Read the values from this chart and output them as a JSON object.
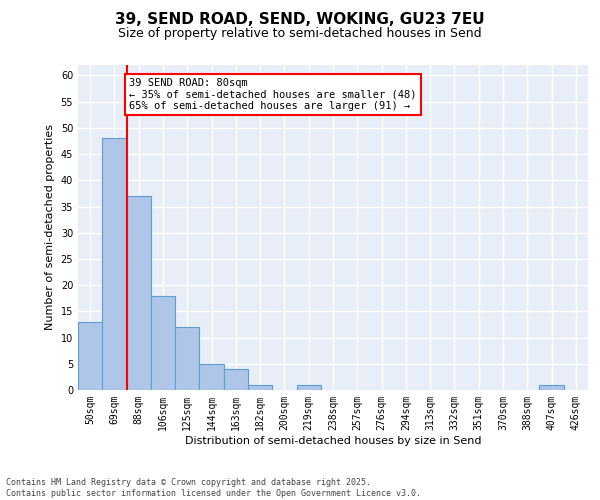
{
  "title": "39, SEND ROAD, SEND, WOKING, GU23 7EU",
  "subtitle": "Size of property relative to semi-detached houses in Send",
  "xlabel": "Distribution of semi-detached houses by size in Send",
  "ylabel": "Number of semi-detached properties",
  "categories": [
    "50sqm",
    "69sqm",
    "88sqm",
    "106sqm",
    "125sqm",
    "144sqm",
    "163sqm",
    "182sqm",
    "200sqm",
    "219sqm",
    "238sqm",
    "257sqm",
    "276sqm",
    "294sqm",
    "313sqm",
    "332sqm",
    "351sqm",
    "370sqm",
    "388sqm",
    "407sqm",
    "426sqm"
  ],
  "values": [
    13,
    48,
    37,
    18,
    12,
    5,
    4,
    1,
    0,
    1,
    0,
    0,
    0,
    0,
    0,
    0,
    0,
    0,
    0,
    1,
    0
  ],
  "bar_color": "#aec6e8",
  "bar_edge_color": "#5a9fd4",
  "vline_x": 1.5,
  "vline_color": "red",
  "annotation_text": "39 SEND ROAD: 80sqm\n← 35% of semi-detached houses are smaller (48)\n65% of semi-detached houses are larger (91) →",
  "annotation_box_color": "white",
  "annotation_box_edge_color": "red",
  "ylim": [
    0,
    62
  ],
  "yticks": [
    0,
    5,
    10,
    15,
    20,
    25,
    30,
    35,
    40,
    45,
    50,
    55,
    60
  ],
  "background_color": "#e8eef7",
  "grid_color": "white",
  "footer": "Contains HM Land Registry data © Crown copyright and database right 2025.\nContains public sector information licensed under the Open Government Licence v3.0.",
  "title_fontsize": 11,
  "subtitle_fontsize": 9,
  "xlabel_fontsize": 8,
  "ylabel_fontsize": 8,
  "tick_fontsize": 7,
  "annotation_fontsize": 7.5,
  "footer_fontsize": 6
}
